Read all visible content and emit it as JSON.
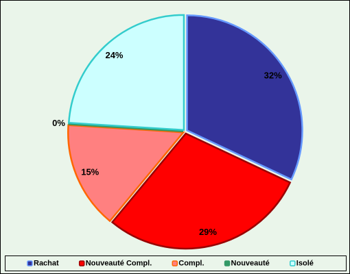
{
  "chart_data": {
    "type": "pie",
    "categories": [
      "Rachat",
      "Nouveauté Compl.",
      "Compl.",
      "Nouveauté",
      "Isolé"
    ],
    "values": [
      32,
      29,
      15,
      0,
      24
    ],
    "value_labels": [
      "32%",
      "29%",
      "15%",
      "0%",
      "24%"
    ],
    "colors": [
      "#333399",
      "#ff0000",
      "#ff8080",
      "#339966",
      "#ccffff"
    ],
    "edge_colors": [
      "#6699ff",
      "#990000",
      "#ff6600",
      "#339966",
      "#33cccc"
    ],
    "legend": "bottom"
  }
}
